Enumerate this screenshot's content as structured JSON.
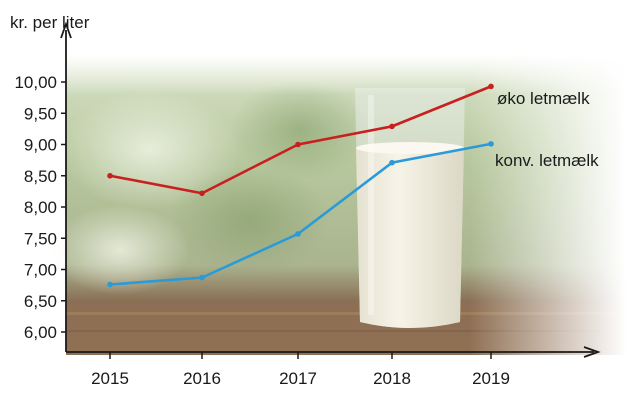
{
  "chart_data": {
    "type": "line",
    "ylabel": "kr. per liter",
    "xlabel": "",
    "categories": [
      "2015",
      "2016",
      "2017",
      "2018",
      "2019"
    ],
    "y_ticks": [
      "10,00",
      "9,50",
      "9,00",
      "8,50",
      "8,00",
      "7,50",
      "7,00",
      "6,50",
      "6,00"
    ],
    "ylim": [
      5.6,
      10.3
    ],
    "grid": false,
    "background": "photo-glass-of-milk",
    "series": [
      {
        "name": "øko letmælk",
        "color": "#c8201e",
        "values": [
          8.5,
          8.22,
          9.0,
          9.29,
          9.93
        ]
      },
      {
        "name": "konv. letmælk",
        "color": "#2a9ad8",
        "values": [
          6.76,
          6.87,
          7.57,
          8.71,
          9.01
        ]
      }
    ]
  }
}
